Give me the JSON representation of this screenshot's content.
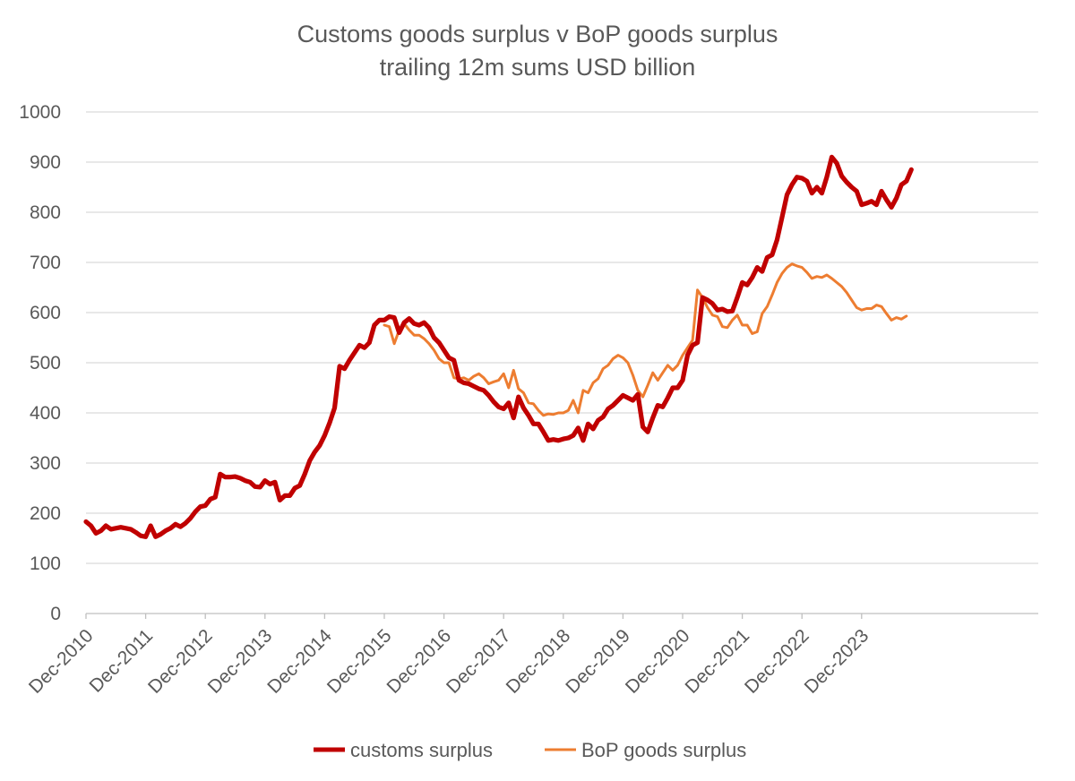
{
  "chart_data": {
    "type": "line",
    "title": "Customs goods surplus v BoP goods surplus",
    "subtitle": "trailing 12m sums USD billion",
    "xlabel": "",
    "ylabel": "",
    "ylim": [
      0,
      1000
    ],
    "yticks": [
      0,
      100,
      200,
      300,
      400,
      500,
      600,
      700,
      800,
      900,
      1000
    ],
    "grid": true,
    "legend_position": "bottom",
    "x_categories": [
      "Dec-2010",
      "Dec-2011",
      "Dec-2012",
      "Dec-2013",
      "Dec-2014",
      "Dec-2015",
      "Dec-2016",
      "Dec-2017",
      "Dec-2018",
      "Dec-2019",
      "Dec-2020",
      "Dec-2021",
      "Dec-2022",
      "Dec-2023"
    ],
    "series": [
      {
        "name": "customs surplus",
        "color": "#c00000",
        "start": "Dec-2010",
        "frequency": "monthly",
        "values": [
          183,
          175,
          160,
          165,
          175,
          168,
          170,
          172,
          170,
          168,
          162,
          155,
          153,
          175,
          153,
          158,
          165,
          170,
          178,
          173,
          180,
          190,
          203,
          213,
          215,
          228,
          232,
          278,
          272,
          272,
          273,
          270,
          265,
          262,
          253,
          252,
          265,
          258,
          262,
          226,
          235,
          235,
          250,
          255,
          278,
          305,
          322,
          335,
          355,
          380,
          410,
          493,
          488,
          505,
          520,
          535,
          530,
          540,
          575,
          585,
          585,
          592,
          590,
          560,
          580,
          588,
          578,
          575,
          580,
          570,
          550,
          540,
          525,
          510,
          505,
          465,
          460,
          458,
          453,
          448,
          445,
          435,
          422,
          412,
          408,
          420,
          390,
          432,
          410,
          395,
          378,
          378,
          362,
          345,
          347,
          345,
          348,
          350,
          355,
          370,
          345,
          378,
          368,
          385,
          392,
          408,
          415,
          425,
          435,
          430,
          425,
          437,
          372,
          362,
          390,
          415,
          412,
          430,
          450,
          450,
          465,
          515,
          535,
          540,
          630,
          625,
          618,
          605,
          607,
          602,
          603,
          630,
          660,
          655,
          670,
          690,
          682,
          710,
          715,
          745,
          790,
          835,
          855,
          870,
          868,
          862,
          838,
          850,
          838,
          870,
          910,
          898,
          872,
          860,
          850,
          842,
          815,
          818,
          822,
          815,
          842,
          825,
          810,
          828,
          855,
          862,
          885
        ]
      },
      {
        "name": "BoP goods surplus",
        "color": "#ed7d31",
        "start": "Dec-2015",
        "frequency": "monthly",
        "values": [
          575,
          572,
          538,
          565,
          578,
          565,
          555,
          555,
          548,
          538,
          525,
          508,
          500,
          500,
          470,
          468,
          470,
          465,
          473,
          478,
          470,
          458,
          462,
          465,
          478,
          450,
          485,
          448,
          440,
          420,
          418,
          405,
          395,
          398,
          397,
          400,
          400,
          405,
          425,
          400,
          445,
          440,
          460,
          468,
          488,
          495,
          508,
          515,
          510,
          500,
          475,
          445,
          432,
          455,
          480,
          465,
          480,
          495,
          485,
          495,
          515,
          530,
          545,
          645,
          630,
          610,
          595,
          592,
          572,
          570,
          585,
          595,
          575,
          575,
          558,
          562,
          598,
          612,
          635,
          660,
          678,
          690,
          697,
          693,
          690,
          680,
          668,
          672,
          670,
          675,
          668,
          660,
          652,
          640,
          625,
          610,
          605,
          608,
          608,
          615,
          612,
          598,
          585,
          590,
          587,
          593
        ]
      }
    ]
  }
}
